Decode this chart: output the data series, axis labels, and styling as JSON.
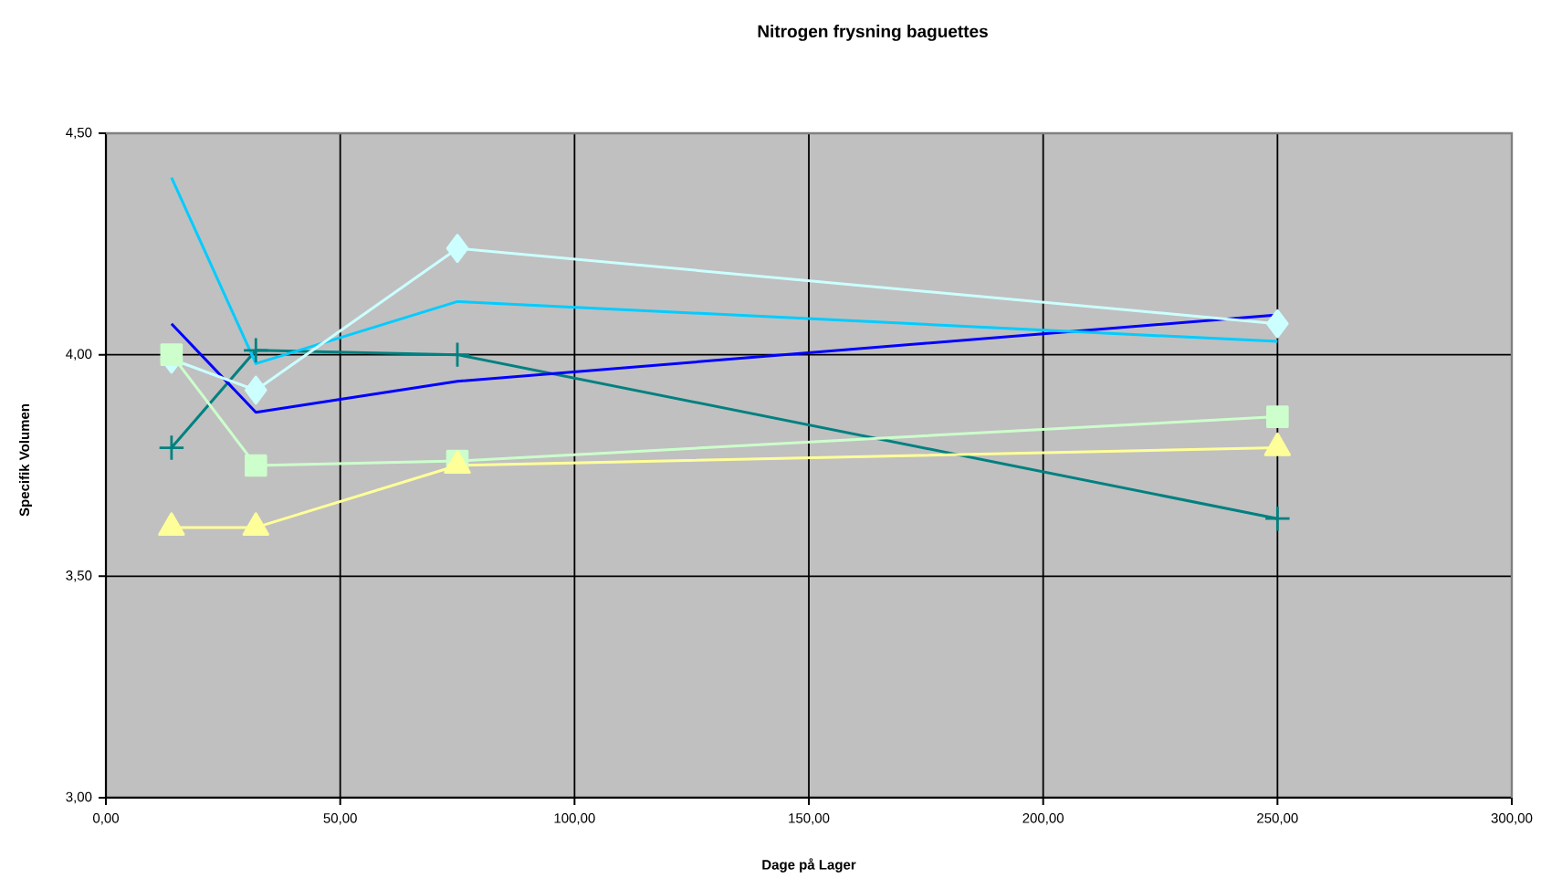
{
  "chart_data": {
    "type": "line",
    "title": "Nitrogen frysning baguettes",
    "xlabel": "Dage på Lager",
    "ylabel": "Specifik Volumen",
    "x": [
      14,
      32,
      75,
      250
    ],
    "series": [
      {
        "color": "#008080",
        "marker": "cross",
        "values": [
          3.79,
          4.01,
          4.0,
          3.63
        ]
      },
      {
        "color": "#0000ff",
        "marker": "none",
        "values": [
          4.07,
          3.87,
          3.94,
          4.09
        ]
      },
      {
        "color": "#00ccff",
        "marker": "none",
        "values": [
          4.4,
          3.98,
          4.12,
          4.03
        ]
      },
      {
        "color": "#ccffff",
        "marker": "diamond",
        "values": [
          3.99,
          3.92,
          4.24,
          4.07
        ]
      },
      {
        "color": "#ccffcc",
        "marker": "square",
        "values": [
          4.0,
          3.75,
          3.76,
          3.86
        ]
      },
      {
        "color": "#ffff99",
        "marker": "triangle",
        "values": [
          3.61,
          3.61,
          3.75,
          3.79
        ]
      }
    ],
    "xlim": [
      0,
      300
    ],
    "ylim": [
      3,
      4.5
    ],
    "xticks": [
      {
        "value": 0,
        "label": "0,00"
      },
      {
        "value": 50,
        "label": "50,00"
      },
      {
        "value": 100,
        "label": "100,00"
      },
      {
        "value": 150,
        "label": "150,00"
      },
      {
        "value": 200,
        "label": "200,00"
      },
      {
        "value": 250,
        "label": "250,00"
      },
      {
        "value": 300,
        "label": "300,00"
      }
    ],
    "yticks": [
      {
        "value": 3,
        "label": "3,00"
      },
      {
        "value": 3.5,
        "label": "3,50"
      },
      {
        "value": 4,
        "label": "4,00"
      },
      {
        "value": 4.5,
        "label": "4,50"
      }
    ],
    "grid": true
  }
}
